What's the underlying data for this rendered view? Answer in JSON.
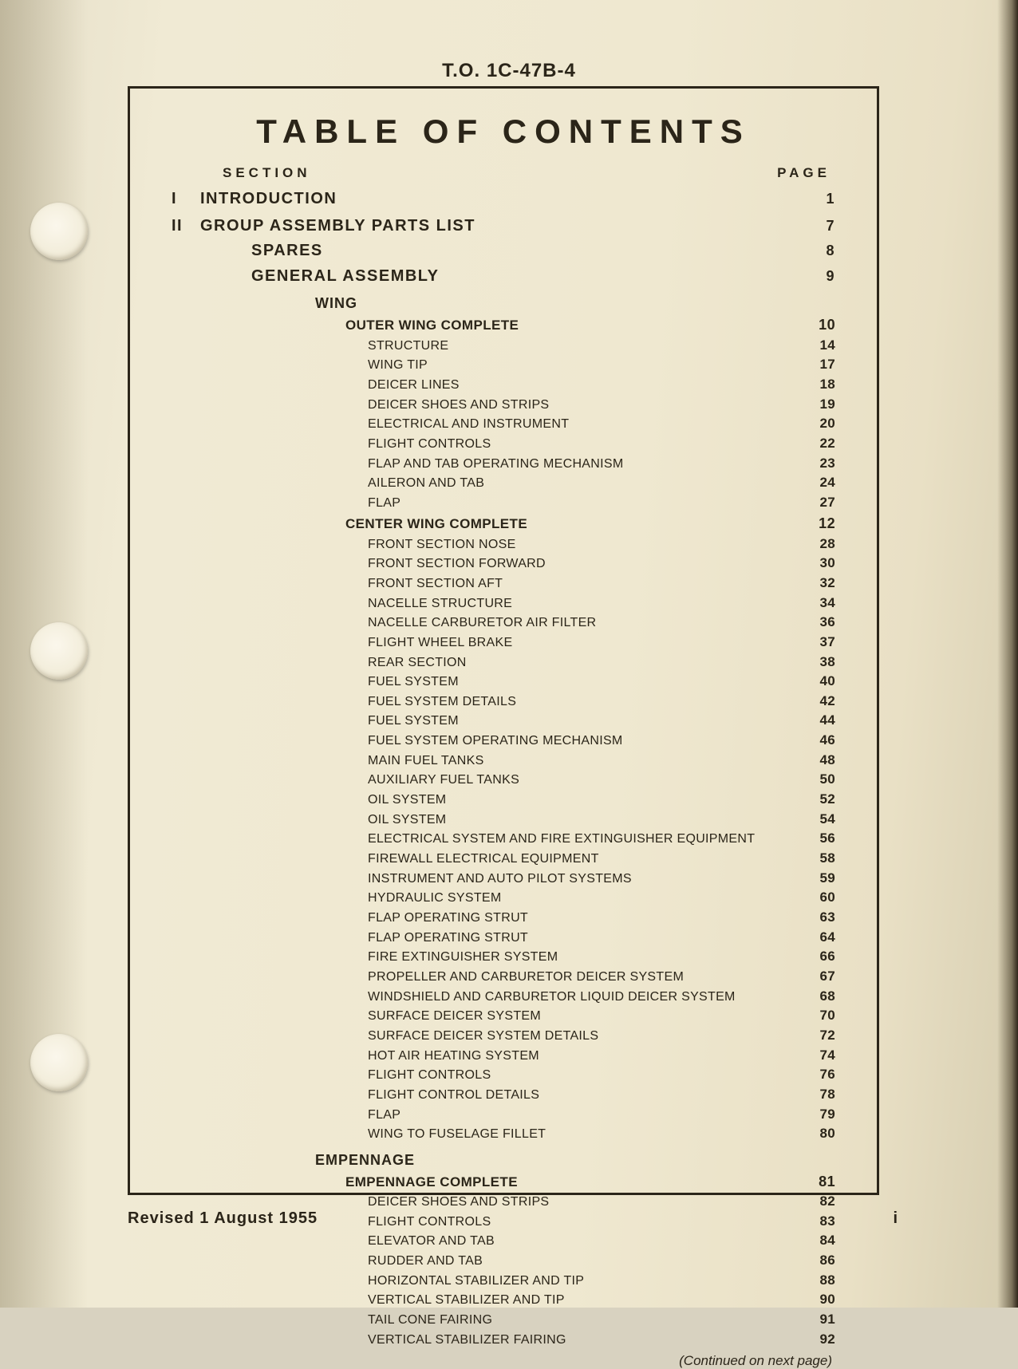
{
  "doc_number": "T.O. 1C-47B-4",
  "title": "TABLE OF CONTENTS",
  "column_headers": {
    "left": "SECTION",
    "right": "PAGE"
  },
  "hole_tops": [
    254,
    780,
    1296
  ],
  "entries": [
    {
      "level": "section",
      "num": "I",
      "label": "INTRODUCTION",
      "page": "1"
    },
    {
      "level": "section",
      "num": "II",
      "label": "GROUP ASSEMBLY PARTS LIST",
      "page": "7"
    },
    {
      "level": "sub",
      "label": "SPARES",
      "page": "8"
    },
    {
      "level": "sub",
      "label": "GENERAL ASSEMBLY",
      "page": "9"
    },
    {
      "level": "group",
      "label": "WING"
    },
    {
      "level": "item",
      "label": "OUTER WING COMPLETE",
      "page": "10"
    },
    {
      "level": "detail",
      "label": "STRUCTURE",
      "page": "14"
    },
    {
      "level": "detail",
      "label": "WING TIP",
      "page": "17"
    },
    {
      "level": "detail",
      "label": "DEICER LINES",
      "page": "18"
    },
    {
      "level": "detail",
      "label": "DEICER SHOES AND STRIPS",
      "page": "19"
    },
    {
      "level": "detail",
      "label": "ELECTRICAL AND INSTRUMENT",
      "page": "20"
    },
    {
      "level": "detail",
      "label": "FLIGHT CONTROLS",
      "page": "22"
    },
    {
      "level": "detail",
      "label": "FLAP AND TAB OPERATING MECHANISM",
      "page": "23"
    },
    {
      "level": "detail",
      "label": "AILERON AND TAB",
      "page": "24"
    },
    {
      "level": "detail",
      "label": "FLAP",
      "page": "27"
    },
    {
      "level": "item",
      "label": "CENTER WING COMPLETE",
      "page": "12"
    },
    {
      "level": "detail",
      "label": "FRONT SECTION NOSE",
      "page": "28"
    },
    {
      "level": "detail",
      "label": "FRONT SECTION FORWARD",
      "page": "30"
    },
    {
      "level": "detail",
      "label": "FRONT SECTION AFT",
      "page": "32"
    },
    {
      "level": "detail",
      "label": "NACELLE STRUCTURE",
      "page": "34"
    },
    {
      "level": "detail",
      "label": "NACELLE CARBURETOR AIR FILTER",
      "page": "36"
    },
    {
      "level": "detail",
      "label": "FLIGHT WHEEL BRAKE",
      "page": "37"
    },
    {
      "level": "detail",
      "label": "REAR SECTION",
      "page": "38"
    },
    {
      "level": "detail",
      "label": "FUEL SYSTEM",
      "page": "40"
    },
    {
      "level": "detail",
      "label": "FUEL SYSTEM DETAILS",
      "page": "42"
    },
    {
      "level": "detail",
      "label": "FUEL SYSTEM",
      "page": "44"
    },
    {
      "level": "detail",
      "label": "FUEL SYSTEM OPERATING MECHANISM",
      "page": "46"
    },
    {
      "level": "detail",
      "label": "MAIN FUEL TANKS",
      "page": "48"
    },
    {
      "level": "detail",
      "label": "AUXILIARY FUEL TANKS",
      "page": "50"
    },
    {
      "level": "detail",
      "label": "OIL SYSTEM",
      "page": "52"
    },
    {
      "level": "detail",
      "label": "OIL SYSTEM",
      "page": "54"
    },
    {
      "level": "detail",
      "label": "ELECTRICAL SYSTEM AND FIRE EXTINGUISHER EQUIPMENT",
      "page": "56"
    },
    {
      "level": "detail",
      "label": "FIREWALL ELECTRICAL EQUIPMENT",
      "page": "58"
    },
    {
      "level": "detail",
      "label": "INSTRUMENT AND AUTO PILOT SYSTEMS",
      "page": "59"
    },
    {
      "level": "detail",
      "label": "HYDRAULIC SYSTEM",
      "page": "60"
    },
    {
      "level": "detail",
      "label": "FLAP OPERATING STRUT",
      "page": "63"
    },
    {
      "level": "detail",
      "label": "FLAP OPERATING STRUT",
      "page": "64"
    },
    {
      "level": "detail",
      "label": "FIRE EXTINGUISHER SYSTEM",
      "page": "66"
    },
    {
      "level": "detail",
      "label": "PROPELLER AND CARBURETOR DEICER SYSTEM",
      "page": "67"
    },
    {
      "level": "detail",
      "label": "WINDSHIELD AND CARBURETOR LIQUID DEICER SYSTEM",
      "page": "68"
    },
    {
      "level": "detail",
      "label": "SURFACE DEICER SYSTEM",
      "page": "70"
    },
    {
      "level": "detail",
      "label": "SURFACE DEICER SYSTEM DETAILS",
      "page": "72"
    },
    {
      "level": "detail",
      "label": "HOT AIR HEATING SYSTEM",
      "page": "74"
    },
    {
      "level": "detail",
      "label": "FLIGHT CONTROLS",
      "page": "76"
    },
    {
      "level": "detail",
      "label": "FLIGHT CONTROL DETAILS",
      "page": "78"
    },
    {
      "level": "detail",
      "label": "FLAP",
      "page": "79"
    },
    {
      "level": "detail",
      "label": "WING TO FUSELAGE FILLET",
      "page": "80"
    },
    {
      "level": "group",
      "label": "EMPENNAGE"
    },
    {
      "level": "item",
      "label": "EMPENNAGE COMPLETE",
      "page": "81"
    },
    {
      "level": "detail",
      "label": "DEICER SHOES AND STRIPS",
      "page": "82"
    },
    {
      "level": "detail",
      "label": "FLIGHT CONTROLS",
      "page": "83"
    },
    {
      "level": "detail",
      "label": "ELEVATOR AND TAB",
      "page": "84"
    },
    {
      "level": "detail",
      "label": "RUDDER AND TAB",
      "page": "86"
    },
    {
      "level": "detail",
      "label": "HORIZONTAL STABILIZER AND TIP",
      "page": "88"
    },
    {
      "level": "detail",
      "label": "VERTICAL STABILIZER AND TIP",
      "page": "90"
    },
    {
      "level": "detail",
      "label": "TAIL CONE FAIRING",
      "page": "91"
    },
    {
      "level": "detail",
      "label": "VERTICAL STABILIZER FAIRING",
      "page": "92"
    }
  ],
  "continued_text": "(Continued on next page)",
  "footer": {
    "revised": "Revised 1 August 1955",
    "page_num": "i"
  }
}
